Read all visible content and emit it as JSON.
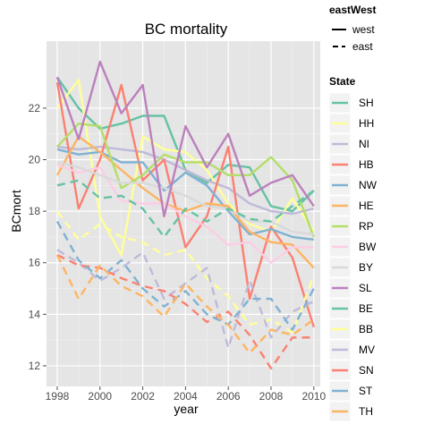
{
  "chart_data": {
    "type": "line",
    "title": "BC mortality",
    "xlabel": "year",
    "ylabel": "BCmort",
    "xlim": [
      1997.5,
      2010.3
    ],
    "ylim": [
      11.2,
      24.6
    ],
    "x_ticks": [
      "1998",
      "2000",
      "2002",
      "2004",
      "2006",
      "2008",
      "2010"
    ],
    "y_ticks": [
      "12",
      "14",
      "16",
      "18",
      "20",
      "22"
    ],
    "grid": true,
    "panel_background": "#e5e5e5",
    "legend_position": "right",
    "linetype_legend": {
      "title": "eastWest",
      "entries": [
        {
          "label": "west",
          "dash": "solid"
        },
        {
          "label": "east",
          "dash": "dashed"
        }
      ]
    },
    "color_legend": {
      "title": "State",
      "entries": [
        {
          "label": "SH",
          "color": "#66c2a5"
        },
        {
          "label": "HH",
          "color": "#ffff99"
        },
        {
          "label": "NI",
          "color": "#bebada"
        },
        {
          "label": "HB",
          "color": "#fb8072"
        },
        {
          "label": "NW",
          "color": "#80b1d3"
        },
        {
          "label": "HE",
          "color": "#fdb462"
        },
        {
          "label": "RP",
          "color": "#b3de69"
        },
        {
          "label": "BW",
          "color": "#fccde5"
        },
        {
          "label": "BY",
          "color": "#d9d9d9"
        },
        {
          "label": "SL",
          "color": "#bc80bd"
        },
        {
          "label": "BE",
          "color": "#66c2a5"
        },
        {
          "label": "BB",
          "color": "#ffff99"
        },
        {
          "label": "MV",
          "color": "#bebada"
        },
        {
          "label": "SN",
          "color": "#fb8072"
        },
        {
          "label": "ST",
          "color": "#80b1d3"
        },
        {
          "label": "TH",
          "color": "#fdb462"
        }
      ]
    },
    "x": [
      1998,
      1999,
      2000,
      2001,
      2002,
      2003,
      2004,
      2005,
      2006,
      2007,
      2008,
      2009,
      2010
    ],
    "series": [
      {
        "name": "SH",
        "color": "#66c2a5",
        "dash": "solid",
        "values": [
          23.2,
          22.0,
          21.2,
          21.4,
          21.7,
          21.7,
          19.6,
          19.1,
          19.8,
          19.7,
          18.2,
          18.0,
          18.8
        ]
      },
      {
        "name": "HH",
        "color": "#ffff99",
        "dash": "solid",
        "values": [
          22.0,
          23.1,
          17.8,
          16.3,
          20.9,
          20.4,
          20.3,
          19.6,
          18.3,
          17.5,
          17.2,
          18.5,
          17.2
        ]
      },
      {
        "name": "NI",
        "color": "#bebada",
        "dash": "solid",
        "values": [
          20.5,
          20.4,
          20.5,
          20.4,
          20.3,
          20.0,
          19.6,
          19.2,
          18.9,
          18.3,
          18.0,
          17.9,
          18.1
        ]
      },
      {
        "name": "HB",
        "color": "#fb8072",
        "dash": "solid",
        "values": [
          23.0,
          18.1,
          20.0,
          22.9,
          19.2,
          20.0,
          16.6,
          17.8,
          20.5,
          14.6,
          17.4,
          16.2,
          13.5
        ]
      },
      {
        "name": "NW",
        "color": "#80b1d3",
        "dash": "solid",
        "values": [
          20.4,
          20.2,
          20.3,
          19.9,
          19.9,
          18.8,
          19.5,
          19.0,
          18.0,
          17.1,
          17.3,
          17.0,
          16.9
        ]
      },
      {
        "name": "HE",
        "color": "#fdb462",
        "dash": "solid",
        "values": [
          19.4,
          20.9,
          20.3,
          19.6,
          18.9,
          18.3,
          18.0,
          18.3,
          18.2,
          17.2,
          16.8,
          16.7,
          15.8
        ]
      },
      {
        "name": "RP",
        "color": "#b3de69",
        "dash": "solid",
        "values": [
          20.5,
          21.4,
          21.3,
          18.9,
          19.4,
          20.2,
          19.9,
          19.9,
          19.4,
          19.4,
          20.1,
          19.2,
          17.0
        ]
      },
      {
        "name": "BW",
        "color": "#fccde5",
        "dash": "solid",
        "values": [
          19.8,
          19.5,
          19.7,
          18.4,
          18.3,
          18.3,
          17.8,
          17.4,
          16.7,
          16.8,
          16.0,
          16.6,
          16.6
        ]
      },
      {
        "name": "BY",
        "color": "#d9d9d9",
        "dash": "solid",
        "values": [
          19.9,
          19.7,
          19.4,
          19.1,
          19.1,
          18.9,
          18.6,
          18.2,
          18.1,
          17.6,
          17.6,
          17.2,
          17.1
        ]
      },
      {
        "name": "SL",
        "color": "#bc80bd",
        "dash": "solid",
        "values": [
          23.2,
          20.8,
          23.8,
          21.8,
          22.9,
          17.8,
          21.3,
          19.7,
          21.0,
          18.6,
          19.1,
          19.4,
          18.2
        ]
      },
      {
        "name": "BE",
        "color": "#66c2a5",
        "dash": "dashed",
        "values": [
          19.0,
          19.2,
          18.5,
          18.6,
          18.1,
          17.0,
          18.1,
          17.6,
          18.1,
          17.7,
          17.6,
          18.2,
          18.8
        ]
      },
      {
        "name": "BB",
        "color": "#ffff99",
        "dash": "dashed",
        "values": [
          18.0,
          16.9,
          17.5,
          17.0,
          16.8,
          16.3,
          16.5,
          15.4,
          14.7,
          13.6,
          13.8,
          13.3,
          15.5
        ]
      },
      {
        "name": "MV",
        "color": "#bebada",
        "dash": "dashed",
        "values": [
          16.5,
          16.0,
          15.3,
          15.8,
          16.4,
          14.6,
          15.2,
          15.8,
          12.7,
          15.3,
          13.1,
          14.1,
          14.5
        ]
      },
      {
        "name": "SN",
        "color": "#fb8072",
        "dash": "dashed",
        "values": [
          16.3,
          15.9,
          15.8,
          15.4,
          15.1,
          14.9,
          14.4,
          13.7,
          14.1,
          13.2,
          11.9,
          13.1,
          13.1
        ]
      },
      {
        "name": "ST",
        "color": "#80b1d3",
        "dash": "dashed",
        "values": [
          17.6,
          16.1,
          15.4,
          16.1,
          15.0,
          14.3,
          14.9,
          14.0,
          13.6,
          14.6,
          14.6,
          13.4,
          15.0
        ]
      },
      {
        "name": "TH",
        "color": "#fdb462",
        "dash": "dashed",
        "values": [
          16.3,
          14.6,
          15.9,
          15.1,
          14.7,
          13.9,
          15.2,
          14.3,
          13.6,
          12.5,
          13.4,
          13.2,
          13.8
        ]
      }
    ]
  }
}
